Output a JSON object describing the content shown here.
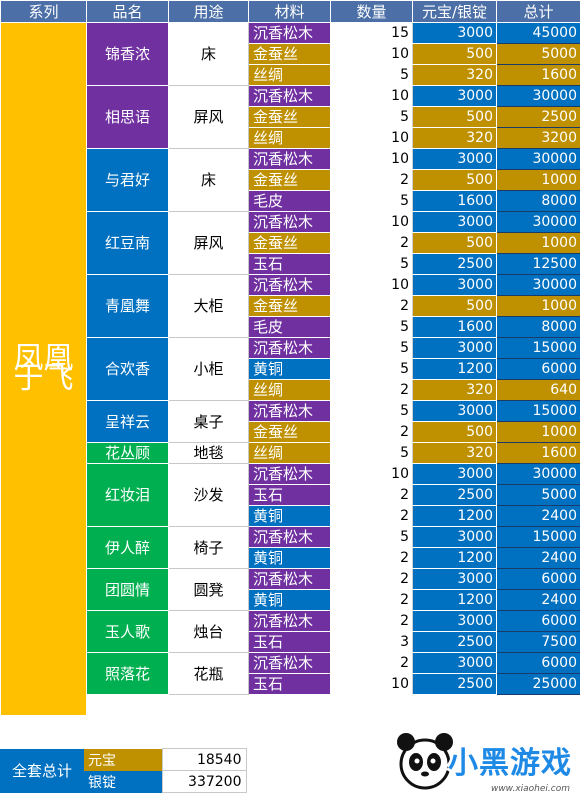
{
  "headers": [
    "系列",
    "品名",
    "用途",
    "材料",
    "数量",
    "元宝/银锭",
    "总计"
  ],
  "series_name": "凤凰于飞",
  "items": [
    {
      "name": "锦香浓",
      "use": "床",
      "color": "pur",
      "materials": [
        {
          "mat": "沉香松木",
          "mc": "pur",
          "qty": "15",
          "price": "3000",
          "total": "45000",
          "pc": "blu"
        },
        {
          "mat": "金蚕丝",
          "mc": "gold",
          "qty": "10",
          "price": "500",
          "total": "5000",
          "pc": "gold"
        },
        {
          "mat": "丝绸",
          "mc": "gold",
          "qty": "5",
          "price": "320",
          "total": "1600",
          "pc": "gold"
        }
      ]
    },
    {
      "name": "相思语",
      "use": "屏风",
      "color": "pur",
      "materials": [
        {
          "mat": "沉香松木",
          "mc": "pur",
          "qty": "10",
          "price": "3000",
          "total": "30000",
          "pc": "blu"
        },
        {
          "mat": "金蚕丝",
          "mc": "gold",
          "qty": "5",
          "price": "500",
          "total": "2500",
          "pc": "gold"
        },
        {
          "mat": "丝绸",
          "mc": "gold",
          "qty": "10",
          "price": "320",
          "total": "3200",
          "pc": "gold"
        }
      ]
    },
    {
      "name": "与君好",
      "use": "床",
      "color": "blu",
      "materials": [
        {
          "mat": "沉香松木",
          "mc": "pur",
          "qty": "10",
          "price": "3000",
          "total": "30000",
          "pc": "blu"
        },
        {
          "mat": "金蚕丝",
          "mc": "gold",
          "qty": "2",
          "price": "500",
          "total": "1000",
          "pc": "gold"
        },
        {
          "mat": "毛皮",
          "mc": "pur",
          "qty": "5",
          "price": "1600",
          "total": "8000",
          "pc": "blu"
        }
      ]
    },
    {
      "name": "红豆南",
      "use": "屏风",
      "color": "blu",
      "materials": [
        {
          "mat": "沉香松木",
          "mc": "pur",
          "qty": "10",
          "price": "3000",
          "total": "30000",
          "pc": "blu"
        },
        {
          "mat": "金蚕丝",
          "mc": "gold",
          "qty": "2",
          "price": "500",
          "total": "1000",
          "pc": "gold"
        },
        {
          "mat": "玉石",
          "mc": "pur",
          "qty": "5",
          "price": "2500",
          "total": "12500",
          "pc": "blu"
        }
      ]
    },
    {
      "name": "青凰舞",
      "use": "大柜",
      "color": "blu",
      "materials": [
        {
          "mat": "沉香松木",
          "mc": "pur",
          "qty": "10",
          "price": "3000",
          "total": "30000",
          "pc": "blu"
        },
        {
          "mat": "金蚕丝",
          "mc": "gold",
          "qty": "2",
          "price": "500",
          "total": "1000",
          "pc": "gold"
        },
        {
          "mat": "毛皮",
          "mc": "pur",
          "qty": "5",
          "price": "1600",
          "total": "8000",
          "pc": "blu"
        }
      ]
    },
    {
      "name": "合欢香",
      "use": "小柜",
      "color": "blu",
      "materials": [
        {
          "mat": "沉香松木",
          "mc": "pur",
          "qty": "5",
          "price": "3000",
          "total": "15000",
          "pc": "blu"
        },
        {
          "mat": "黄铜",
          "mc": "blu",
          "qty": "5",
          "price": "1200",
          "total": "6000",
          "pc": "blu"
        },
        {
          "mat": "丝绸",
          "mc": "gold",
          "qty": "2",
          "price": "320",
          "total": "640",
          "pc": "gold"
        }
      ]
    },
    {
      "name": "呈祥云",
      "use": "桌子",
      "color": "blu",
      "materials": [
        {
          "mat": "沉香松木",
          "mc": "pur",
          "qty": "5",
          "price": "3000",
          "total": "15000",
          "pc": "blu"
        },
        {
          "mat": "金蚕丝",
          "mc": "gold",
          "qty": "2",
          "price": "500",
          "total": "1000",
          "pc": "gold"
        }
      ]
    },
    {
      "name": "花丛顾",
      "use": "地毯",
      "color": "grn",
      "materials": [
        {
          "mat": "丝绸",
          "mc": "gold",
          "qty": "5",
          "price": "320",
          "total": "1600",
          "pc": "gold"
        }
      ]
    },
    {
      "name": "红妆泪",
      "use": "沙发",
      "color": "grn",
      "materials": [
        {
          "mat": "沉香松木",
          "mc": "pur",
          "qty": "10",
          "price": "3000",
          "total": "30000",
          "pc": "blu"
        },
        {
          "mat": "玉石",
          "mc": "pur",
          "qty": "2",
          "price": "2500",
          "total": "5000",
          "pc": "blu"
        },
        {
          "mat": "黄铜",
          "mc": "blu",
          "qty": "2",
          "price": "1200",
          "total": "2400",
          "pc": "blu"
        }
      ]
    },
    {
      "name": "伊人醉",
      "use": "椅子",
      "color": "grn",
      "materials": [
        {
          "mat": "沉香松木",
          "mc": "pur",
          "qty": "5",
          "price": "3000",
          "total": "15000",
          "pc": "blu"
        },
        {
          "mat": "黄铜",
          "mc": "blu",
          "qty": "2",
          "price": "1200",
          "total": "2400",
          "pc": "blu"
        }
      ]
    },
    {
      "name": "团圆情",
      "use": "圆凳",
      "color": "grn",
      "materials": [
        {
          "mat": "沉香松木",
          "mc": "pur",
          "qty": "2",
          "price": "3000",
          "total": "6000",
          "pc": "blu"
        },
        {
          "mat": "黄铜",
          "mc": "blu",
          "qty": "2",
          "price": "1200",
          "total": "2400",
          "pc": "blu"
        }
      ]
    },
    {
      "name": "玉人歌",
      "use": "烛台",
      "color": "grn",
      "materials": [
        {
          "mat": "沉香松木",
          "mc": "pur",
          "qty": "2",
          "price": "3000",
          "total": "6000",
          "pc": "blu"
        },
        {
          "mat": "玉石",
          "mc": "pur",
          "qty": "3",
          "price": "2500",
          "total": "7500",
          "pc": "blu"
        }
      ]
    },
    {
      "name": "照落花",
      "use": "花瓶",
      "color": "grn",
      "materials": [
        {
          "mat": "沉香松木",
          "mc": "pur",
          "qty": "2",
          "price": "3000",
          "total": "6000",
          "pc": "blu"
        },
        {
          "mat": "玉石",
          "mc": "pur",
          "qty": "10",
          "price": "2500",
          "total": "25000",
          "pc": "blu"
        }
      ]
    }
  ],
  "summary": {
    "label": "全套总计",
    "rows": [
      {
        "currency": "元宝",
        "value": "18540",
        "color": "gold"
      },
      {
        "currency": "银锭",
        "value": "337200",
        "color": "blu"
      }
    ]
  },
  "logo": {
    "text": "小黑游戏",
    "sub": "www.xiaohei.com",
    "icon": "panda-icon"
  },
  "colors": {
    "pur": "#7030a0",
    "gold": "#bf9000",
    "blu": "#0070c0",
    "grn": "#00b050",
    "series": "#ffc000",
    "header": "#4b6fa6"
  }
}
